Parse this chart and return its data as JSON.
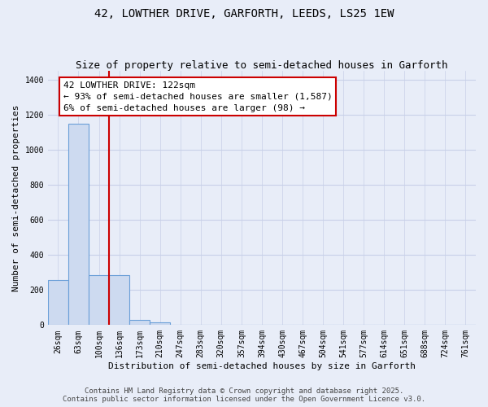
{
  "title": "42, LOWTHER DRIVE, GARFORTH, LEEDS, LS25 1EW",
  "subtitle": "Size of property relative to semi-detached houses in Garforth",
  "xlabel": "Distribution of semi-detached houses by size in Garforth",
  "ylabel": "Number of semi-detached properties",
  "categories": [
    "26sqm",
    "63sqm",
    "100sqm",
    "136sqm",
    "173sqm",
    "210sqm",
    "247sqm",
    "283sqm",
    "320sqm",
    "357sqm",
    "394sqm",
    "430sqm",
    "467sqm",
    "504sqm",
    "541sqm",
    "577sqm",
    "614sqm",
    "651sqm",
    "688sqm",
    "724sqm",
    "761sqm"
  ],
  "values": [
    255,
    1150,
    285,
    285,
    30,
    15,
    0,
    0,
    0,
    0,
    0,
    0,
    0,
    0,
    0,
    0,
    0,
    0,
    0,
    0,
    0
  ],
  "bar_color": "#cddaf0",
  "bar_edge_color": "#6a9fd8",
  "background_color": "#e8edf8",
  "grid_color": "#c8d0e8",
  "ylim": [
    0,
    1450
  ],
  "yticks": [
    0,
    200,
    400,
    600,
    800,
    1000,
    1200,
    1400
  ],
  "annotation_text": "42 LOWTHER DRIVE: 122sqm\n← 93% of semi-detached houses are smaller (1,587)\n6% of semi-detached houses are larger (98) →",
  "annotation_box_color": "#ffffff",
  "annotation_box_edge": "#cc0000",
  "red_line_x": 2.5,
  "footer_line1": "Contains HM Land Registry data © Crown copyright and database right 2025.",
  "footer_line2": "Contains public sector information licensed under the Open Government Licence v3.0.",
  "title_fontsize": 10,
  "subtitle_fontsize": 9,
  "axis_label_fontsize": 8,
  "tick_fontsize": 7,
  "annotation_fontsize": 8,
  "footer_fontsize": 6.5
}
